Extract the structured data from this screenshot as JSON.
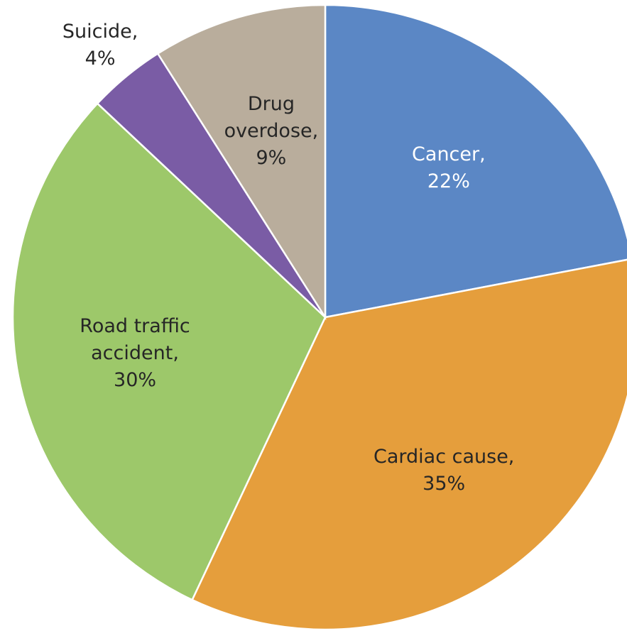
{
  "chart_data": {
    "type": "pie",
    "categories": [
      "Cancer,",
      "Cardiac cause,",
      "Road traffic accident,",
      "Suicide,",
      "Drug overdose,"
    ],
    "values": [
      22,
      35,
      30,
      4,
      9
    ],
    "value_labels": [
      "22%",
      "35%",
      "30%",
      "4%",
      "9%"
    ],
    "colors": [
      "#5b87c5",
      "#e59e3c",
      "#9dc86a",
      "#7a5ca5",
      "#b9ad9c"
    ]
  }
}
